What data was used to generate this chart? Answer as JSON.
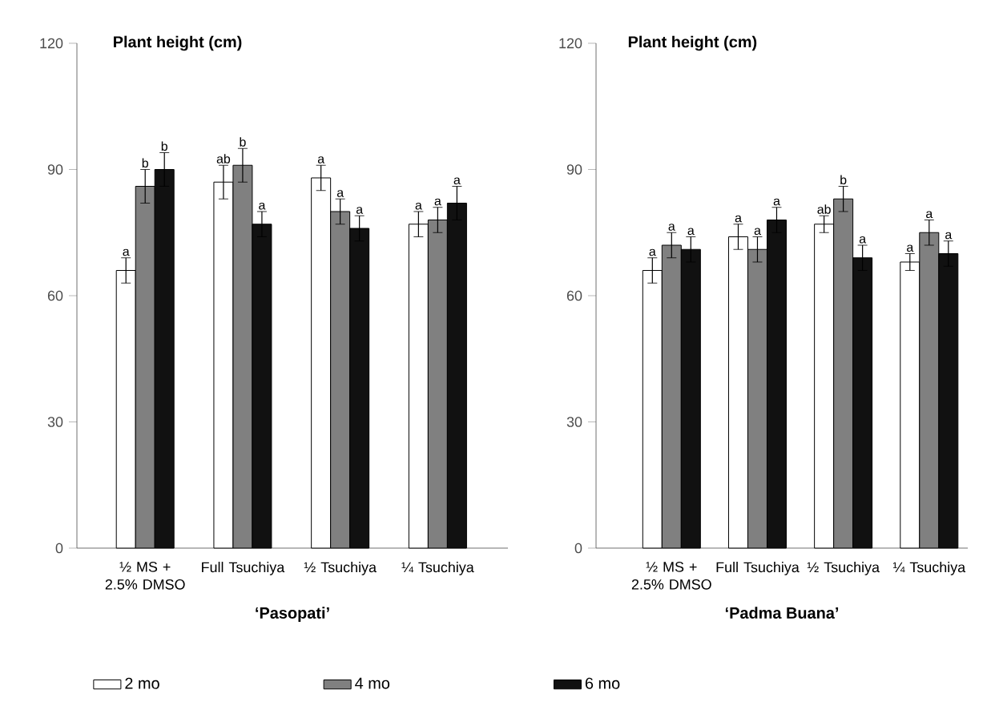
{
  "chart_data": [
    {
      "type": "bar",
      "ylabel": "Plant height (cm)",
      "xlabel": "‘Pasopati’",
      "categories": [
        "½ MS + 2.5% DMSO",
        "Full Tsuchiya",
        "½ Tsuchiya",
        "¼ Tsuchiya"
      ],
      "ylim": [
        0,
        120
      ],
      "yticks": [
        0,
        30,
        60,
        90,
        120
      ],
      "legend": "bottom",
      "series": [
        {
          "name": "2 mo",
          "color": "#ffffff",
          "values": [
            66,
            87,
            88,
            77
          ],
          "errors": [
            3,
            4,
            3,
            3
          ],
          "value_labels": [
            "a",
            "ab",
            "a",
            "a"
          ]
        },
        {
          "name": "4 mo",
          "color": "#808080",
          "values": [
            86,
            91,
            80,
            78
          ],
          "errors": [
            4,
            4,
            3,
            3
          ],
          "value_labels": [
            "b",
            "b",
            "a",
            "a"
          ]
        },
        {
          "name": "6 mo",
          "color": "#111111",
          "values": [
            90,
            77,
            76,
            82
          ],
          "errors": [
            4,
            3,
            3,
            4
          ],
          "value_labels": [
            "b",
            "a",
            "a",
            "a"
          ]
        }
      ]
    },
    {
      "type": "bar",
      "ylabel": "Plant height (cm)",
      "xlabel": "‘Padma Buana’",
      "categories": [
        "½ MS + 2.5% DMSO",
        "Full Tsuchiya",
        "½ Tsuchiya",
        "¼ Tsuchiya"
      ],
      "ylim": [
        0,
        120
      ],
      "yticks": [
        0,
        30,
        60,
        90,
        120
      ],
      "series": [
        {
          "color": "#ffffff",
          "values": [
            66,
            74,
            77,
            68
          ],
          "errors": [
            3,
            3,
            2,
            2
          ],
          "value_labels": [
            "a",
            "a",
            "ab",
            "a"
          ]
        },
        {
          "color": "#808080",
          "values": [
            72,
            71,
            83,
            75
          ],
          "errors": [
            3,
            3,
            3,
            3
          ],
          "value_labels": [
            "a",
            "a",
            "b",
            "a"
          ]
        },
        {
          "color": "#111111",
          "values": [
            71,
            78,
            69,
            70
          ],
          "errors": [
            3,
            3,
            3,
            3
          ],
          "value_labels": [
            "a",
            "a",
            "a",
            "a"
          ]
        }
      ]
    }
  ]
}
